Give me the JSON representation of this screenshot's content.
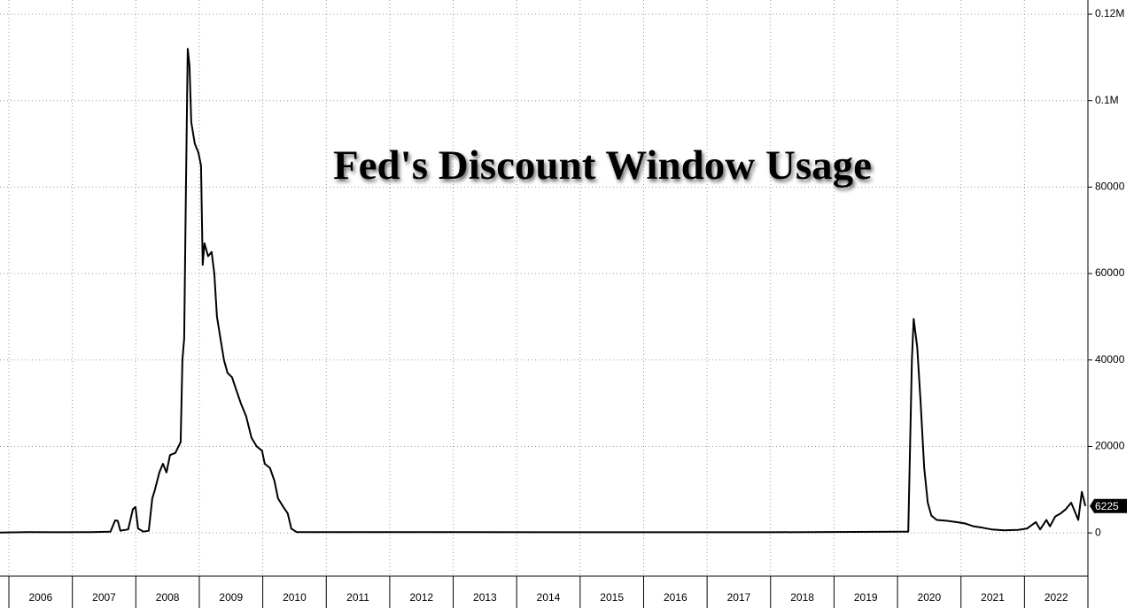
{
  "chart_data": {
    "type": "line",
    "title": "Fed's Discount Window Usage",
    "xlim": [
      2005.86,
      2023
    ],
    "xticks": [
      2006,
      2007,
      2008,
      2009,
      2010,
      2011,
      2012,
      2013,
      2014,
      2015,
      2016,
      2017,
      2018,
      2019,
      2020,
      2021,
      2022
    ],
    "ylim": [
      -10000,
      120000
    ],
    "yticks": [
      0,
      20000,
      40000,
      60000,
      80000,
      {
        "value": 100000,
        "label": "0.1M"
      },
      {
        "value": 120000,
        "label": "0.12M"
      }
    ],
    "grid": true,
    "series": [
      {
        "color": "#000000",
        "x": [
          2005.86,
          2006.3,
          2006.8,
          2007.3,
          2007.6,
          2007.674,
          2007.715,
          2007.757,
          2007.88,
          2007.953,
          2007.994,
          2008.036,
          2008.12,
          2008.204,
          2008.259,
          2008.301,
          2008.371,
          2008.427,
          2008.483,
          2008.538,
          2008.622,
          2008.706,
          2008.734,
          2008.762,
          2008.79,
          2008.817,
          2008.845,
          2008.873,
          2008.929,
          2008.985,
          2009.027,
          2009.054,
          2009.082,
          2009.138,
          2009.194,
          2009.236,
          2009.278,
          2009.333,
          2009.389,
          2009.445,
          2009.515,
          2009.584,
          2009.654,
          2009.738,
          2009.822,
          2009.905,
          2009.989,
          2010.031,
          2010.114,
          2010.184,
          2010.24,
          2010.324,
          2010.393,
          2010.449,
          2010.533,
          2012.7,
          2015,
          2018,
          2020.17,
          2020.226,
          2020.254,
          2020.31,
          2020.365,
          2020.421,
          2020.477,
          2020.533,
          2020.617,
          2020.784,
          2020.923,
          2021.063,
          2021.202,
          2021.342,
          2021.481,
          2021.69,
          2021.9,
          2022.039,
          2022.179,
          2022.248,
          2022.346,
          2022.401,
          2022.485,
          2022.569,
          2022.653,
          2022.736,
          2022.792,
          2022.848,
          2022.903,
          2022.959
        ],
        "values": [
          100,
          200,
          150,
          200,
          300,
          2900,
          2800,
          500,
          800,
          5500,
          6000,
          1000,
          300,
          500,
          8000,
          10000,
          14000,
          16000,
          14000,
          18000,
          18500,
          21000,
          40000,
          45000,
          80000,
          112000,
          108000,
          95000,
          90000,
          88000,
          85000,
          62000,
          67000,
          64000,
          65000,
          60000,
          50000,
          45000,
          40000,
          37000,
          36000,
          33000,
          30000,
          27000,
          22000,
          20000,
          19000,
          16000,
          15000,
          12000,
          8000,
          6000,
          4500,
          1000,
          200,
          200,
          150,
          150,
          300,
          40000,
          49500,
          43000,
          30000,
          15000,
          7000,
          4000,
          3000,
          2800,
          2500,
          2200,
          1500,
          1200,
          800,
          600,
          700,
          1000,
          2500,
          800,
          3000,
          1500,
          3800,
          4500,
          5500,
          7000,
          5000,
          3000,
          9500,
          6225
        ]
      }
    ]
  }
}
